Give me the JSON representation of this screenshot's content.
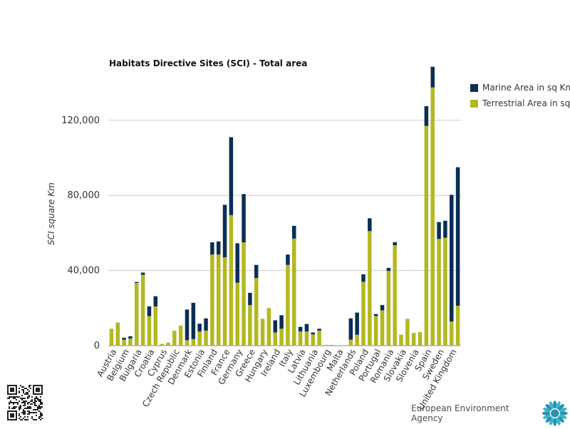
{
  "chart_data": {
    "type": "bar",
    "stacked": true,
    "title": "Habitats Directive Sites (SCI) - Total area",
    "ylabel": "SCI square Km",
    "xlabel": "",
    "ylim": [
      0,
      148000
    ],
    "yticks": [
      0,
      40000,
      80000,
      120000
    ],
    "ytick_labels": [
      "0",
      "40,000",
      "80,000",
      "120,000"
    ],
    "grid": true,
    "legend_position": "top-right",
    "x_tick_labels": [
      "Austria",
      "Belgium",
      "Bulgaria",
      "Croatia",
      "Cyprus",
      "Czech Republic",
      "Denmark",
      "Estonia",
      "Finland",
      "France",
      "Germany",
      "Greece",
      "Hungary",
      "Ireland",
      "Italy",
      "Latvia",
      "Lithuania",
      "Luxembourg",
      "Malta",
      "Netherlands",
      "Poland",
      "Portugal",
      "Romania",
      "Slovakia",
      "Slovenia",
      "Spain",
      "Sweden",
      "United Kingdom"
    ],
    "bar_count": 56,
    "series": [
      {
        "name": "Terrestrial Area in sq Km",
        "color": "#b3b822",
        "values": [
          9000,
          12300,
          3200,
          3800,
          33400,
          37700,
          15700,
          20900,
          900,
          1600,
          7900,
          10700,
          2900,
          3500,
          7500,
          8000,
          48500,
          48500,
          47000,
          69500,
          33500,
          55000,
          21600,
          36000,
          14300,
          20000,
          7000,
          9000,
          43000,
          57000,
          7500,
          7500,
          6000,
          8000,
          400,
          400,
          50,
          100,
          3200,
          5800,
          34000,
          61000,
          15800,
          18800,
          39800,
          53500,
          5800,
          14300,
          6800,
          7200,
          117000,
          137500,
          56800,
          57500,
          12800,
          21200
        ]
      },
      {
        "name": "Marine Area in sq Km",
        "color": "#0a2e55",
        "values": [
          0,
          0,
          1000,
          1200,
          500,
          1200,
          5200,
          5400,
          0,
          0,
          0,
          0,
          16300,
          19300,
          4200,
          6500,
          6500,
          7000,
          28000,
          41500,
          21000,
          25700,
          6500,
          7000,
          0,
          0,
          6500,
          7200,
          5500,
          6800,
          2500,
          4000,
          1000,
          1000,
          0,
          0,
          0,
          0,
          11300,
          11800,
          4000,
          6800,
          1000,
          2800,
          1600,
          1600,
          0,
          0,
          0,
          0,
          10500,
          11000,
          9000,
          9000,
          67500,
          73800
        ]
      }
    ]
  },
  "footer": {
    "agency_name": "European Environment Agency"
  }
}
